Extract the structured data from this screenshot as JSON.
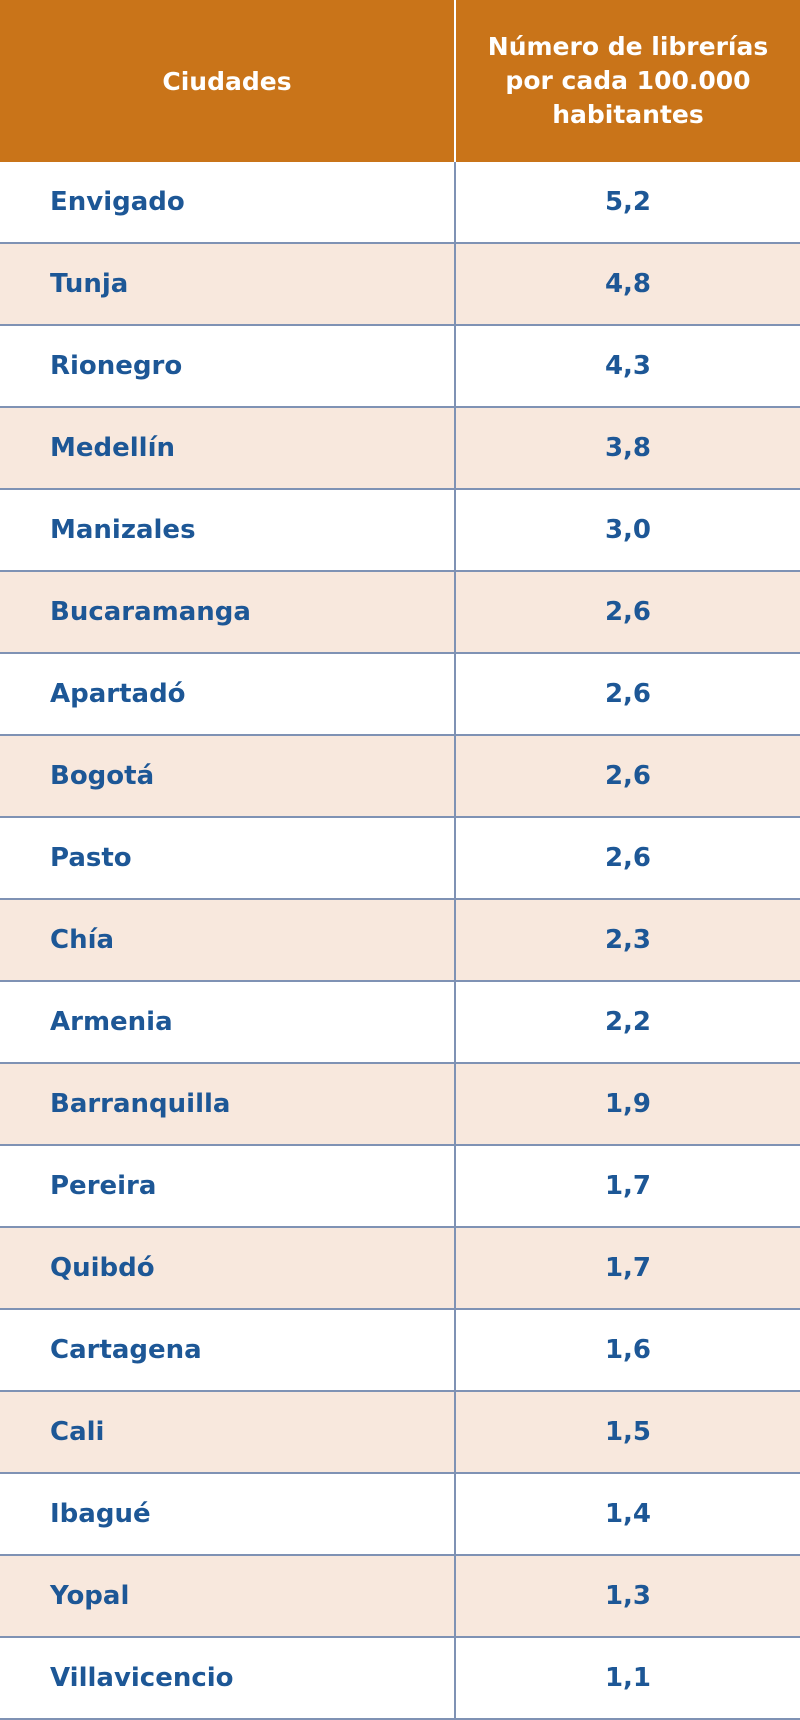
{
  "chart_data": {
    "type": "table",
    "columns": [
      "Ciudades",
      "Número de librerías por cada 100.000 habitantes"
    ],
    "rows": [
      {
        "city": "Envigado",
        "value": "5,2"
      },
      {
        "city": "Tunja",
        "value": "4,8"
      },
      {
        "city": "Rionegro",
        "value": "4,3"
      },
      {
        "city": "Medellín",
        "value": "3,8"
      },
      {
        "city": "Manizales",
        "value": "3,0"
      },
      {
        "city": "Bucaramanga",
        "value": "2,6"
      },
      {
        "city": "Apartadó",
        "value": "2,6"
      },
      {
        "city": "Bogotá",
        "value": "2,6"
      },
      {
        "city": "Pasto",
        "value": "2,6"
      },
      {
        "city": "Chía",
        "value": "2,3"
      },
      {
        "city": "Armenia",
        "value": "2,2"
      },
      {
        "city": "Barranquilla",
        "value": "1,9"
      },
      {
        "city": "Pereira",
        "value": "1,7"
      },
      {
        "city": "Quibdó",
        "value": "1,7"
      },
      {
        "city": "Cartagena",
        "value": "1,6"
      },
      {
        "city": "Cali",
        "value": "1,5"
      },
      {
        "city": "Ibagué",
        "value": "1,4"
      },
      {
        "city": "Yopal",
        "value": "1,3"
      },
      {
        "city": "Villavicencio",
        "value": "1,1"
      }
    ]
  },
  "colors": {
    "header_bg": "#c97419",
    "header_text": "#ffffff",
    "body_text": "#1d5796",
    "alt_row_bg": "#f8e8dd",
    "grid_line": "#7f92b4"
  }
}
